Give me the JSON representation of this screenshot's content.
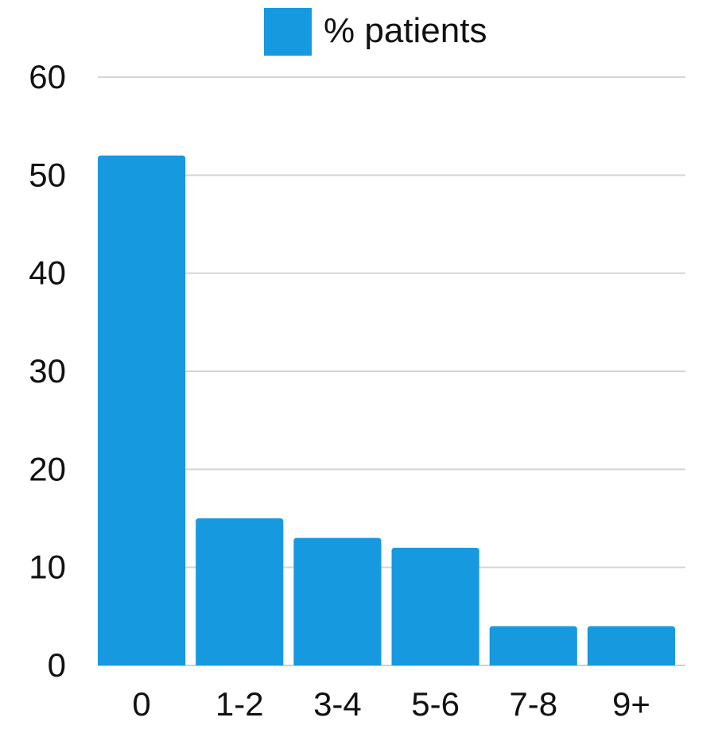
{
  "chart_data": {
    "type": "bar",
    "categories": [
      "0",
      "1-2",
      "3-4",
      "5-6",
      "7-8",
      "9+"
    ],
    "series": [
      {
        "name": "% patients",
        "values": [
          52,
          15,
          13,
          12,
          4,
          4
        ]
      }
    ],
    "ylim": [
      0,
      60
    ],
    "yticks": [
      0,
      10,
      20,
      30,
      40,
      50,
      60
    ],
    "grid": true,
    "legend_position": "top-center",
    "colors": {
      "bar": "#1799E0",
      "grid": "#D5D5D5",
      "axis": "#CFCFCF",
      "text": "#111111"
    }
  }
}
